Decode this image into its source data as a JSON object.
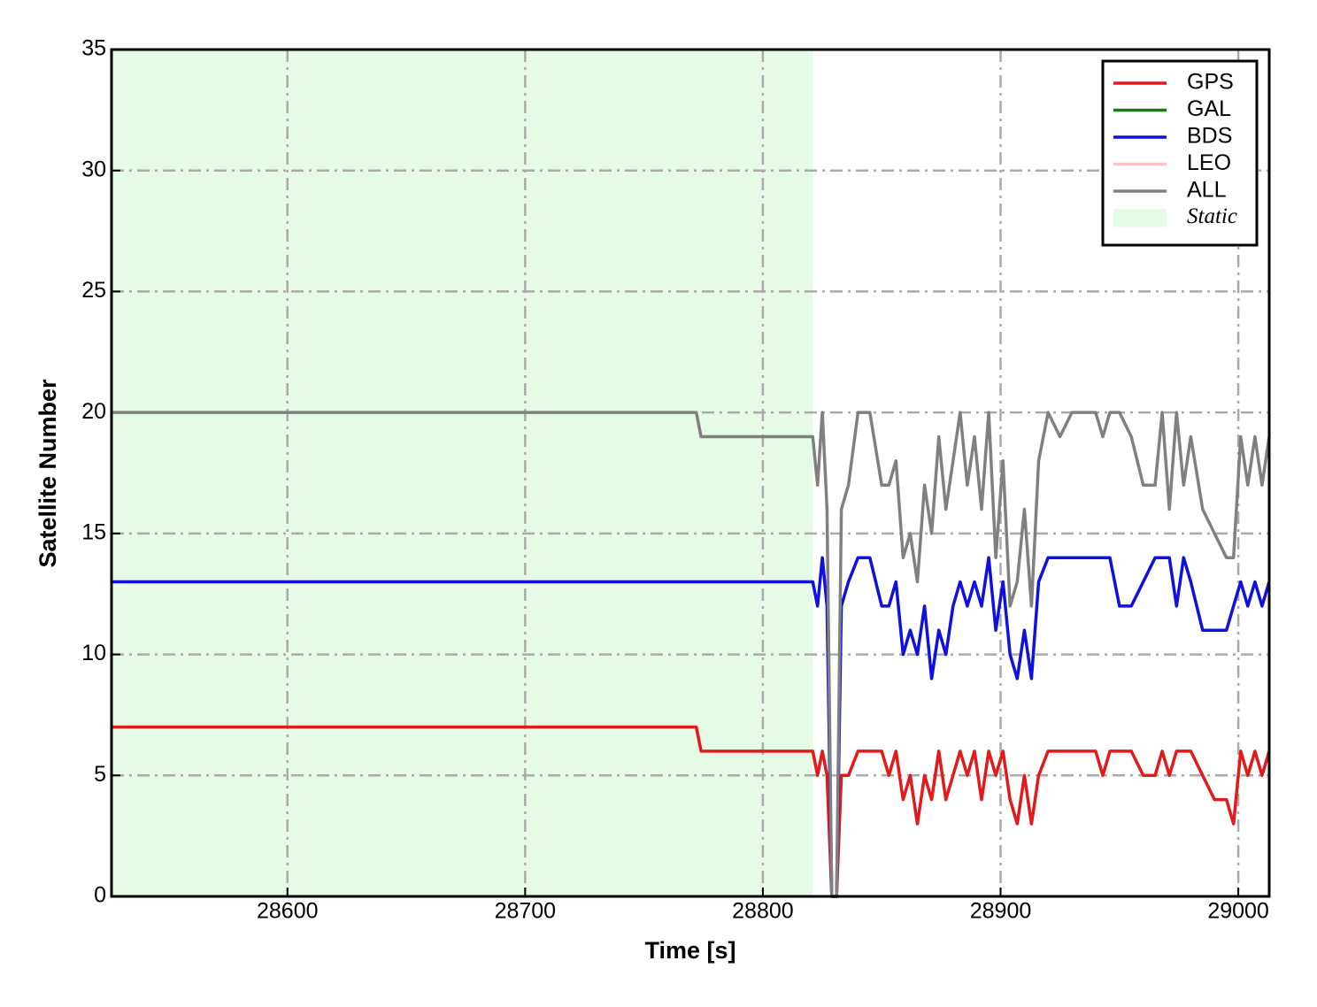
{
  "chart_data": {
    "type": "line",
    "xlabel": "Time [s]",
    "ylabel": "Satellite Number",
    "x": [
      28526,
      28772,
      28774,
      28821,
      28823,
      28825,
      28827,
      28829,
      28831,
      28833,
      28836,
      28840,
      28845,
      28850,
      28853,
      28856,
      28859,
      28862,
      28865,
      28868,
      28871,
      28874,
      28877,
      28880,
      28883,
      28886,
      28889,
      28892,
      28895,
      28898,
      28901,
      28904,
      28907,
      28910,
      28913,
      28916,
      28920,
      28925,
      28930,
      28935,
      28940,
      28943,
      28946,
      28950,
      28955,
      28960,
      28965,
      28968,
      28971,
      28974,
      28977,
      28980,
      28985,
      28990,
      28995,
      28998,
      29001,
      29004,
      29007,
      29010,
      29013
    ],
    "series": [
      {
        "name": "GPS",
        "color": "#e41a1a",
        "values": [
          7,
          7,
          6,
          6,
          5,
          6,
          5,
          0,
          0,
          5,
          5,
          6,
          6,
          6,
          5,
          6,
          4,
          5,
          3,
          5,
          4,
          6,
          4,
          5,
          6,
          5,
          6,
          4,
          6,
          5,
          6,
          4,
          3,
          5,
          3,
          5,
          6,
          6,
          6,
          6,
          6,
          5,
          6,
          6,
          6,
          5,
          5,
          6,
          5,
          6,
          6,
          6,
          5,
          4,
          4,
          3,
          6,
          5,
          6,
          5,
          6
        ]
      },
      {
        "name": "GAL",
        "color": "#118011",
        "values": [
          null,
          null,
          null,
          null,
          null,
          null,
          null,
          null,
          null,
          null,
          null,
          null,
          null,
          null,
          null,
          null,
          null,
          null,
          null,
          null,
          null,
          null,
          null,
          null,
          null,
          null,
          null,
          null,
          null,
          null,
          null,
          null,
          null,
          null,
          null,
          null,
          null,
          null,
          null,
          null,
          null,
          null,
          null,
          null,
          null,
          null,
          null,
          null,
          null,
          null,
          null,
          null,
          null,
          null,
          null,
          null,
          null,
          null,
          null,
          null,
          null
        ]
      },
      {
        "name": "BDS",
        "color": "#1010e0",
        "values": [
          13,
          13,
          13,
          13,
          12,
          14,
          12,
          0,
          0,
          12,
          13,
          14,
          14,
          12,
          12,
          13,
          10,
          11,
          10,
          12,
          9,
          11,
          10,
          12,
          13,
          12,
          13,
          12,
          14,
          11,
          13,
          10,
          9,
          11,
          9,
          13,
          14,
          14,
          14,
          14,
          14,
          14,
          14,
          12,
          12,
          13,
          14,
          14,
          14,
          12,
          14,
          13,
          11,
          11,
          11,
          12,
          13,
          12,
          13,
          12,
          13
        ]
      },
      {
        "name": "LEO",
        "color": "#ffc0cb",
        "values": [
          null,
          null,
          null,
          null,
          null,
          null,
          null,
          null,
          null,
          null,
          null,
          null,
          null,
          null,
          null,
          null,
          null,
          null,
          null,
          null,
          null,
          null,
          null,
          null,
          null,
          null,
          null,
          null,
          null,
          null,
          null,
          null,
          null,
          null,
          null,
          null,
          null,
          null,
          null,
          null,
          null,
          null,
          null,
          null,
          null,
          null,
          null,
          null,
          null,
          null,
          null,
          null,
          null,
          null,
          null,
          null,
          null,
          null,
          null,
          null,
          null
        ]
      },
      {
        "name": "ALL",
        "color": "#808080",
        "values": [
          20,
          20,
          19,
          19,
          17,
          20,
          16,
          0,
          0,
          16,
          17,
          20,
          20,
          17,
          17,
          18,
          14,
          15,
          13,
          17,
          15,
          19,
          16,
          18,
          20,
          17,
          19,
          16,
          20,
          14,
          18,
          12,
          13,
          16,
          12,
          18,
          20,
          19,
          20,
          20,
          20,
          19,
          20,
          20,
          19,
          17,
          17,
          20,
          16,
          20,
          17,
          19,
          16,
          15,
          14,
          14,
          19,
          17,
          19,
          17,
          19
        ]
      }
    ],
    "shade": {
      "label": "Static",
      "x": [
        28526,
        28821
      ],
      "color": "#e6fbe6"
    },
    "xlim": [
      28526,
      29013
    ],
    "xticks": [
      28600,
      28700,
      28800,
      28900,
      29000
    ],
    "ylim": [
      0,
      35
    ],
    "yticks": [
      0,
      5,
      10,
      15,
      20,
      25,
      30,
      35
    ],
    "grid": true,
    "legend": "upper right"
  }
}
